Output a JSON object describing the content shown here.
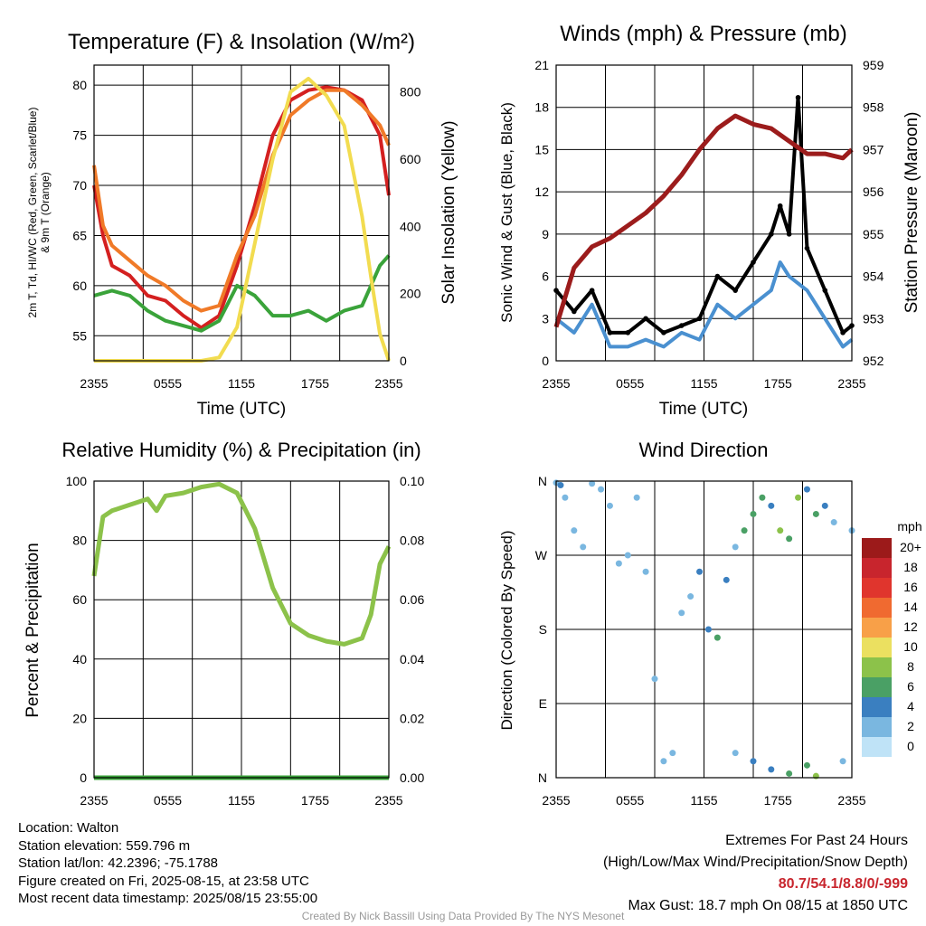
{
  "panels": {
    "temp": {
      "title": "Temperature (F) & Insolation (W/m²)",
      "xlabel": "Time (UTC)",
      "ylabel_left_line1": "2m T, Td, HI/WC (Red, Green, Scarlet/Blue)",
      "ylabel_left_line2": "& 9m T (Orange)",
      "ylabel_right": "Solar Insolation (Yellow)"
    },
    "wind": {
      "title": "Winds (mph) & Pressure (mb)",
      "xlabel": "Time (UTC)",
      "ylabel_left": "Sonic Wind & Gust (Blue, Black)",
      "ylabel_right": "Station Pressure (Maroon)"
    },
    "rh": {
      "title": "Relative Humidity (%) & Precipitation (in)",
      "ylabel_left": "Percent & Precipitation"
    },
    "dir": {
      "title": "Wind Direction",
      "ylabel_left": "Direction (Colored By Speed)",
      "legend_unit": "mph"
    }
  },
  "chart_data": [
    {
      "type": "line",
      "title": "Temperature (F) & Insolation (W/m²)",
      "xlabel": "Time (UTC)",
      "x_ticks": [
        "2355",
        "0555",
        "1155",
        "1755",
        "2355"
      ],
      "ylim": [
        52.5,
        82
      ],
      "y_ticks": [
        55,
        60,
        65,
        70,
        75,
        80
      ],
      "y2lim": [
        0,
        880
      ],
      "y2_ticks": [
        0,
        200,
        400,
        600,
        800
      ],
      "series": [
        {
          "name": "2m T",
          "color": "#d42020",
          "axis": "left",
          "points": [
            [
              0,
              70
            ],
            [
              1,
              65
            ],
            [
              2,
              62
            ],
            [
              4,
              61
            ],
            [
              6,
              59
            ],
            [
              8,
              58.5
            ],
            [
              10,
              57
            ],
            [
              12,
              55.8
            ],
            [
              14,
              57
            ],
            [
              16,
              62
            ],
            [
              18,
              68
            ],
            [
              20,
              75
            ],
            [
              22,
              78.5
            ],
            [
              24,
              79.5
            ],
            [
              26,
              79.8
            ],
            [
              28,
              79.5
            ],
            [
              30,
              78.5
            ],
            [
              32,
              75
            ],
            [
              33,
              69
            ]
          ]
        },
        {
          "name": "9m T",
          "color": "#f07a28",
          "axis": "left",
          "points": [
            [
              0,
              72
            ],
            [
              1,
              66
            ],
            [
              2,
              64
            ],
            [
              4,
              62.5
            ],
            [
              6,
              61
            ],
            [
              8,
              60
            ],
            [
              10,
              58.5
            ],
            [
              12,
              57.5
            ],
            [
              14,
              58
            ],
            [
              16,
              63
            ],
            [
              18,
              67
            ],
            [
              20,
              73
            ],
            [
              22,
              77
            ],
            [
              24,
              78.5
            ],
            [
              26,
              79.5
            ],
            [
              28,
              79.5
            ],
            [
              30,
              78
            ],
            [
              32,
              76
            ],
            [
              33,
              74
            ]
          ]
        },
        {
          "name": "Td",
          "color": "#3aa33a",
          "axis": "left",
          "points": [
            [
              0,
              59
            ],
            [
              2,
              59.5
            ],
            [
              4,
              59
            ],
            [
              6,
              57.5
            ],
            [
              8,
              56.5
            ],
            [
              10,
              56
            ],
            [
              12,
              55.5
            ],
            [
              14,
              56.5
            ],
            [
              16,
              60
            ],
            [
              18,
              59
            ],
            [
              20,
              57
            ],
            [
              22,
              57
            ],
            [
              24,
              57.5
            ],
            [
              26,
              56.5
            ],
            [
              28,
              57.5
            ],
            [
              30,
              58
            ],
            [
              32,
              62
            ],
            [
              33,
              63
            ]
          ]
        },
        {
          "name": "Solar Insolation",
          "color": "#f2dc50",
          "axis": "right",
          "points": [
            [
              0,
              0
            ],
            [
              4,
              0
            ],
            [
              8,
              0
            ],
            [
              12,
              0
            ],
            [
              14,
              10
            ],
            [
              16,
              100
            ],
            [
              18,
              350
            ],
            [
              20,
              600
            ],
            [
              22,
              800
            ],
            [
              24,
              840
            ],
            [
              26,
              790
            ],
            [
              28,
              700
            ],
            [
              30,
              430
            ],
            [
              31,
              250
            ],
            [
              32,
              80
            ],
            [
              33,
              0
            ]
          ]
        }
      ]
    },
    {
      "type": "line",
      "title": "Winds (mph) & Pressure (mb)",
      "xlabel": "Time (UTC)",
      "x_ticks": [
        "2355",
        "0555",
        "1155",
        "1755",
        "2355"
      ],
      "ylim": [
        0,
        21
      ],
      "y_ticks": [
        0,
        3,
        6,
        9,
        12,
        15,
        18,
        21
      ],
      "y2lim": [
        952,
        959
      ],
      "y2_ticks": [
        952,
        953,
        954,
        955,
        956,
        957,
        958,
        959
      ],
      "series": [
        {
          "name": "Sonic Wind",
          "color": "#4a90d0",
          "axis": "left",
          "points": [
            [
              0,
              3
            ],
            [
              2,
              2
            ],
            [
              4,
              4
            ],
            [
              6,
              1
            ],
            [
              8,
              1
            ],
            [
              10,
              1.5
            ],
            [
              12,
              1
            ],
            [
              14,
              2
            ],
            [
              16,
              1.5
            ],
            [
              18,
              4
            ],
            [
              20,
              3
            ],
            [
              22,
              4
            ],
            [
              24,
              5
            ],
            [
              25,
              7
            ],
            [
              26,
              6
            ],
            [
              28,
              5
            ],
            [
              30,
              3
            ],
            [
              32,
              1
            ],
            [
              33,
              1.5
            ]
          ]
        },
        {
          "name": "Gust",
          "color": "#000000",
          "axis": "left",
          "points": [
            [
              0,
              5
            ],
            [
              2,
              3.5
            ],
            [
              4,
              5
            ],
            [
              6,
              2
            ],
            [
              8,
              2
            ],
            [
              10,
              3
            ],
            [
              12,
              2
            ],
            [
              14,
              2.5
            ],
            [
              16,
              3
            ],
            [
              18,
              6
            ],
            [
              20,
              5
            ],
            [
              22,
              7
            ],
            [
              24,
              9
            ],
            [
              25,
              11
            ],
            [
              26,
              9
            ],
            [
              27,
              18.7
            ],
            [
              28,
              8
            ],
            [
              30,
              5
            ],
            [
              32,
              2
            ],
            [
              33,
              2.5
            ]
          ]
        },
        {
          "name": "Station Pressure",
          "color": "#9c1c1c",
          "axis": "right",
          "points": [
            [
              0,
              952.8
            ],
            [
              2,
              954.2
            ],
            [
              4,
              954.7
            ],
            [
              6,
              954.9
            ],
            [
              8,
              955.2
            ],
            [
              10,
              955.5
            ],
            [
              12,
              955.9
            ],
            [
              14,
              956.4
            ],
            [
              16,
              957.0
            ],
            [
              18,
              957.5
            ],
            [
              20,
              957.8
            ],
            [
              22,
              957.6
            ],
            [
              24,
              957.5
            ],
            [
              26,
              957.2
            ],
            [
              28,
              956.9
            ],
            [
              30,
              956.9
            ],
            [
              32,
              956.8
            ],
            [
              33,
              957.0
            ]
          ]
        }
      ]
    },
    {
      "type": "line",
      "title": "Relative Humidity (%) & Precipitation (in)",
      "x_ticks": [
        "2355",
        "0555",
        "1155",
        "1755",
        "2355"
      ],
      "ylim": [
        0,
        100
      ],
      "y_ticks": [
        0,
        20,
        40,
        60,
        80,
        100
      ],
      "y2lim": [
        0,
        0.1
      ],
      "y2_ticks": [
        "0.00",
        "0.02",
        "0.04",
        "0.06",
        "0.08",
        "0.10"
      ],
      "series": [
        {
          "name": "Relative Humidity",
          "color": "#8cc24a",
          "axis": "left",
          "points": [
            [
              0,
              68
            ],
            [
              1,
              88
            ],
            [
              2,
              90
            ],
            [
              4,
              92
            ],
            [
              6,
              94
            ],
            [
              7,
              90
            ],
            [
              8,
              95
            ],
            [
              10,
              96
            ],
            [
              12,
              98
            ],
            [
              14,
              99
            ],
            [
              16,
              96
            ],
            [
              18,
              84
            ],
            [
              20,
              64
            ],
            [
              22,
              52
            ],
            [
              24,
              48
            ],
            [
              26,
              46
            ],
            [
              28,
              45
            ],
            [
              30,
              47
            ],
            [
              31,
              55
            ],
            [
              32,
              72
            ],
            [
              33,
              78
            ]
          ]
        },
        {
          "name": "Precipitation",
          "color": "#3aa33a",
          "axis": "right",
          "points": [
            [
              0,
              0
            ],
            [
              33,
              0
            ]
          ]
        }
      ]
    },
    {
      "type": "scatter",
      "title": "Wind Direction",
      "x_ticks": [
        "2355",
        "0555",
        "1155",
        "1755",
        "2355"
      ],
      "y_ticks": [
        "N",
        "E",
        "S",
        "W",
        "N"
      ],
      "ylim": [
        0,
        360
      ],
      "legend": {
        "title": "mph",
        "labels": [
          "20+",
          "18",
          "16",
          "14",
          "12",
          "10",
          "8",
          "6",
          "4",
          "2",
          "0"
        ],
        "colors": [
          "#9c1a1a",
          "#c8252d",
          "#e0352d",
          "#f06a30",
          "#f8a048",
          "#ebe060",
          "#8cc24a",
          "#4aa065",
          "#3a7fc0",
          "#7ab7e0",
          "#bfe3f7"
        ]
      },
      "points": [
        [
          0,
          358,
          1
        ],
        [
          0.5,
          355,
          4
        ],
        [
          1,
          340,
          1
        ],
        [
          2,
          300,
          1
        ],
        [
          3,
          280,
          1
        ],
        [
          4,
          357,
          1
        ],
        [
          5,
          350,
          1
        ],
        [
          6,
          330,
          1
        ],
        [
          7,
          260,
          1
        ],
        [
          8,
          270,
          1
        ],
        [
          9,
          340,
          1
        ],
        [
          10,
          250,
          1
        ],
        [
          11,
          120,
          1
        ],
        [
          12,
          20,
          1
        ],
        [
          13,
          30,
          1
        ],
        [
          14,
          200,
          2
        ],
        [
          15,
          220,
          2
        ],
        [
          16,
          250,
          3
        ],
        [
          17,
          180,
          4
        ],
        [
          18,
          170,
          6
        ],
        [
          19,
          240,
          3
        ],
        [
          20,
          280,
          2
        ],
        [
          21,
          300,
          6
        ],
        [
          22,
          320,
          5
        ],
        [
          23,
          340,
          6
        ],
        [
          24,
          330,
          4
        ],
        [
          25,
          300,
          7
        ],
        [
          26,
          290,
          5
        ],
        [
          27,
          340,
          8
        ],
        [
          28,
          350,
          4
        ],
        [
          29,
          320,
          6
        ],
        [
          30,
          330,
          3
        ],
        [
          31,
          310,
          2
        ],
        [
          32,
          20,
          1
        ],
        [
          33,
          300,
          2
        ],
        [
          20,
          30,
          2
        ],
        [
          22,
          20,
          3
        ],
        [
          24,
          10,
          4
        ],
        [
          26,
          5,
          5
        ],
        [
          28,
          15,
          6
        ],
        [
          29,
          2,
          8
        ]
      ]
    }
  ],
  "info": {
    "location": "Location: Walton",
    "elevation": "Station elevation: 559.796 m",
    "latlon": "Station lat/lon: 42.2396; -75.1788",
    "created": "Figure created on Fri, 2025-08-15, at 23:58 UTC",
    "recent": "Most recent data timestamp: 2025/08/15 23:55:00"
  },
  "extremes": {
    "title": "Extremes For Past 24 Hours",
    "subtitle": "(High/Low/Max Wind/Precipitation/Snow Depth)",
    "values": "80.7/54.1/8.8/0/-999",
    "gust": "Max Gust: 18.7 mph On 08/15 at 1850 UTC"
  },
  "credit": "Created By Nick Bassill Using Data Provided By The NYS Mesonet"
}
